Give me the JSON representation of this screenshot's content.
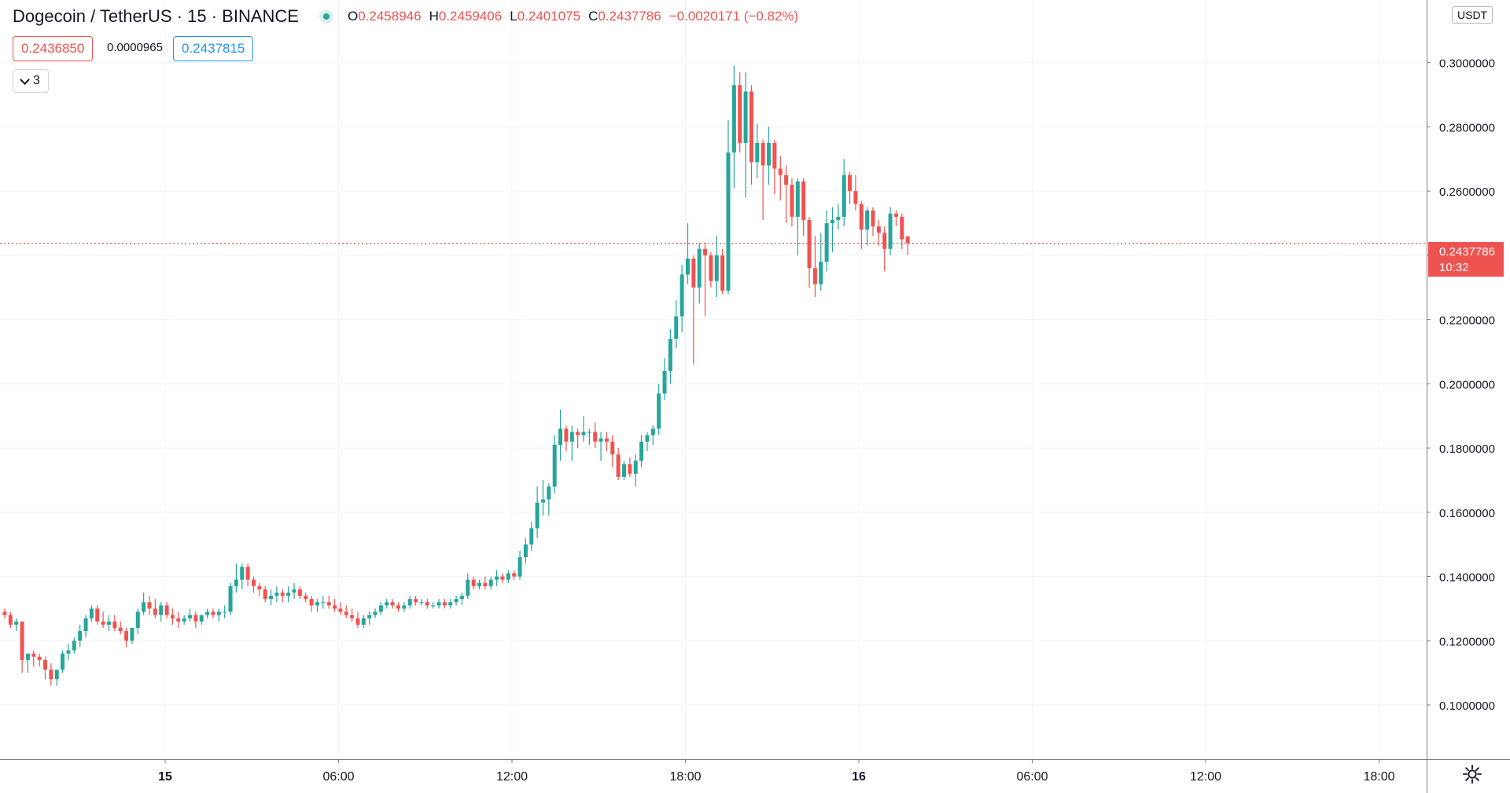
{
  "header": {
    "symbol": "Dogecoin / TetherUS · 15 · BINANCE",
    "o_label": "O",
    "o_value": "0.2458946",
    "h_label": "H",
    "h_value": "0.2459406",
    "l_label": "L",
    "l_value": "0.2401075",
    "c_label": "C",
    "c_value": "0.2437786",
    "change": "−0.0020171 (−0.82%)"
  },
  "sell_price": "0.2436850",
  "spread": "0.0000965",
  "buy_price": "0.2437815",
  "indicators_count": "3",
  "currency": "USDT",
  "last_price": {
    "value": "0.2437786",
    "countdown": "10:32"
  },
  "colors": {
    "up": "#26a69a",
    "down": "#ef5350",
    "grid": "#f0f3fa",
    "axis": "#131722"
  },
  "chart_data": {
    "type": "candlestick",
    "interval_minutes": 15,
    "ylim": [
      0.0885,
      0.3195
    ],
    "y_ticks": [
      "0.1000000",
      "0.1200000",
      "0.1400000",
      "0.1600000",
      "0.1800000",
      "0.2000000",
      "0.2200000",
      "0.2400000",
      "0.2600000",
      "0.2800000",
      "0.3000000"
    ],
    "x_ticks": [
      "15",
      "06:00",
      "12:00",
      "18:00",
      "16",
      "06:00",
      "12:00",
      "18:00"
    ],
    "ohlc": [
      [
        0.129,
        0.13,
        0.127,
        0.128
      ],
      [
        0.128,
        0.129,
        0.124,
        0.125
      ],
      [
        0.125,
        0.127,
        0.123,
        0.126
      ],
      [
        0.126,
        0.126,
        0.11,
        0.114
      ],
      [
        0.114,
        0.116,
        0.11,
        0.116
      ],
      [
        0.116,
        0.117,
        0.112,
        0.115
      ],
      [
        0.115,
        0.116,
        0.112,
        0.114
      ],
      [
        0.114,
        0.115,
        0.108,
        0.111
      ],
      [
        0.111,
        0.113,
        0.106,
        0.108
      ],
      [
        0.108,
        0.111,
        0.106,
        0.111
      ],
      [
        0.111,
        0.117,
        0.11,
        0.116
      ],
      [
        0.116,
        0.119,
        0.114,
        0.117
      ],
      [
        0.117,
        0.121,
        0.116,
        0.12
      ],
      [
        0.12,
        0.125,
        0.118,
        0.123
      ],
      [
        0.123,
        0.128,
        0.121,
        0.127
      ],
      [
        0.127,
        0.131,
        0.126,
        0.13
      ],
      [
        0.13,
        0.131,
        0.125,
        0.126
      ],
      [
        0.126,
        0.129,
        0.124,
        0.125
      ],
      [
        0.125,
        0.128,
        0.123,
        0.126
      ],
      [
        0.126,
        0.128,
        0.123,
        0.124
      ],
      [
        0.124,
        0.126,
        0.122,
        0.123
      ],
      [
        0.123,
        0.124,
        0.118,
        0.12
      ],
      [
        0.12,
        0.124,
        0.119,
        0.124
      ],
      [
        0.124,
        0.13,
        0.122,
        0.129
      ],
      [
        0.129,
        0.135,
        0.128,
        0.132
      ],
      [
        0.132,
        0.134,
        0.128,
        0.13
      ],
      [
        0.13,
        0.133,
        0.127,
        0.128
      ],
      [
        0.128,
        0.132,
        0.126,
        0.131
      ],
      [
        0.131,
        0.132,
        0.127,
        0.128
      ],
      [
        0.128,
        0.13,
        0.125,
        0.127
      ],
      [
        0.127,
        0.129,
        0.124,
        0.126
      ],
      [
        0.126,
        0.128,
        0.125,
        0.127
      ],
      [
        0.127,
        0.13,
        0.126,
        0.128
      ],
      [
        0.128,
        0.129,
        0.124,
        0.126
      ],
      [
        0.126,
        0.128,
        0.125,
        0.128
      ],
      [
        0.128,
        0.13,
        0.127,
        0.129
      ],
      [
        0.129,
        0.13,
        0.127,
        0.128
      ],
      [
        0.128,
        0.13,
        0.126,
        0.129
      ],
      [
        0.129,
        0.131,
        0.127,
        0.129
      ],
      [
        0.129,
        0.138,
        0.128,
        0.137
      ],
      [
        0.137,
        0.144,
        0.135,
        0.139
      ],
      [
        0.139,
        0.144,
        0.136,
        0.143
      ],
      [
        0.143,
        0.144,
        0.137,
        0.139
      ],
      [
        0.139,
        0.14,
        0.135,
        0.137
      ],
      [
        0.137,
        0.138,
        0.134,
        0.136
      ],
      [
        0.136,
        0.137,
        0.132,
        0.133
      ],
      [
        0.133,
        0.136,
        0.131,
        0.134
      ],
      [
        0.134,
        0.137,
        0.132,
        0.135
      ],
      [
        0.135,
        0.136,
        0.132,
        0.134
      ],
      [
        0.134,
        0.137,
        0.132,
        0.135
      ],
      [
        0.135,
        0.138,
        0.133,
        0.136
      ],
      [
        0.136,
        0.137,
        0.133,
        0.134
      ],
      [
        0.134,
        0.135,
        0.132,
        0.133
      ],
      [
        0.133,
        0.134,
        0.129,
        0.131
      ],
      [
        0.131,
        0.133,
        0.129,
        0.132
      ],
      [
        0.132,
        0.134,
        0.13,
        0.132
      ],
      [
        0.132,
        0.134,
        0.13,
        0.131
      ],
      [
        0.131,
        0.133,
        0.129,
        0.13
      ],
      [
        0.13,
        0.132,
        0.128,
        0.129
      ],
      [
        0.129,
        0.131,
        0.127,
        0.128
      ],
      [
        0.128,
        0.13,
        0.126,
        0.127
      ],
      [
        0.127,
        0.129,
        0.124,
        0.125
      ],
      [
        0.125,
        0.128,
        0.124,
        0.127
      ],
      [
        0.127,
        0.129,
        0.125,
        0.128
      ],
      [
        0.128,
        0.13,
        0.127,
        0.129
      ],
      [
        0.129,
        0.132,
        0.128,
        0.131
      ],
      [
        0.131,
        0.133,
        0.13,
        0.132
      ],
      [
        0.132,
        0.133,
        0.13,
        0.131
      ],
      [
        0.131,
        0.132,
        0.129,
        0.13
      ],
      [
        0.13,
        0.132,
        0.129,
        0.131
      ],
      [
        0.131,
        0.134,
        0.13,
        0.133
      ],
      [
        0.133,
        0.134,
        0.131,
        0.132
      ],
      [
        0.132,
        0.133,
        0.131,
        0.132
      ],
      [
        0.132,
        0.133,
        0.13,
        0.131
      ],
      [
        0.131,
        0.132,
        0.13,
        0.131
      ],
      [
        0.131,
        0.133,
        0.13,
        0.132
      ],
      [
        0.132,
        0.133,
        0.13,
        0.131
      ],
      [
        0.131,
        0.133,
        0.13,
        0.132
      ],
      [
        0.132,
        0.134,
        0.131,
        0.133
      ],
      [
        0.133,
        0.135,
        0.131,
        0.134
      ],
      [
        0.134,
        0.141,
        0.133,
        0.139
      ],
      [
        0.139,
        0.14,
        0.136,
        0.137
      ],
      [
        0.137,
        0.139,
        0.136,
        0.138
      ],
      [
        0.138,
        0.14,
        0.136,
        0.137
      ],
      [
        0.137,
        0.14,
        0.136,
        0.139
      ],
      [
        0.139,
        0.142,
        0.137,
        0.14
      ],
      [
        0.14,
        0.141,
        0.138,
        0.139
      ],
      [
        0.139,
        0.142,
        0.138,
        0.141
      ],
      [
        0.141,
        0.142,
        0.139,
        0.14
      ],
      [
        0.14,
        0.148,
        0.139,
        0.146
      ],
      [
        0.146,
        0.152,
        0.144,
        0.15
      ],
      [
        0.15,
        0.157,
        0.148,
        0.155
      ],
      [
        0.155,
        0.168,
        0.152,
        0.163
      ],
      [
        0.163,
        0.17,
        0.159,
        0.164
      ],
      [
        0.164,
        0.169,
        0.159,
        0.168
      ],
      [
        0.168,
        0.184,
        0.166,
        0.181
      ],
      [
        0.181,
        0.192,
        0.176,
        0.186
      ],
      [
        0.186,
        0.187,
        0.179,
        0.182
      ],
      [
        0.182,
        0.187,
        0.176,
        0.185
      ],
      [
        0.185,
        0.186,
        0.18,
        0.184
      ],
      [
        0.184,
        0.19,
        0.182,
        0.185
      ],
      [
        0.185,
        0.186,
        0.181,
        0.185
      ],
      [
        0.185,
        0.188,
        0.18,
        0.182
      ],
      [
        0.182,
        0.185,
        0.176,
        0.183
      ],
      [
        0.183,
        0.185,
        0.179,
        0.182
      ],
      [
        0.182,
        0.184,
        0.174,
        0.178
      ],
      [
        0.178,
        0.18,
        0.17,
        0.171
      ],
      [
        0.171,
        0.176,
        0.17,
        0.175
      ],
      [
        0.175,
        0.177,
        0.171,
        0.172
      ],
      [
        0.172,
        0.178,
        0.168,
        0.176
      ],
      [
        0.176,
        0.184,
        0.174,
        0.182
      ],
      [
        0.182,
        0.185,
        0.179,
        0.184
      ],
      [
        0.184,
        0.187,
        0.181,
        0.186
      ],
      [
        0.186,
        0.2,
        0.184,
        0.197
      ],
      [
        0.197,
        0.208,
        0.195,
        0.204
      ],
      [
        0.204,
        0.217,
        0.2,
        0.214
      ],
      [
        0.214,
        0.226,
        0.211,
        0.221
      ],
      [
        0.221,
        0.237,
        0.216,
        0.234
      ],
      [
        0.234,
        0.25,
        0.231,
        0.239
      ],
      [
        0.239,
        0.24,
        0.206,
        0.23
      ],
      [
        0.23,
        0.244,
        0.225,
        0.242
      ],
      [
        0.242,
        0.244,
        0.221,
        0.24
      ],
      [
        0.24,
        0.241,
        0.23,
        0.232
      ],
      [
        0.232,
        0.246,
        0.227,
        0.24
      ],
      [
        0.24,
        0.242,
        0.228,
        0.229
      ],
      [
        0.229,
        0.282,
        0.228,
        0.272
      ],
      [
        0.272,
        0.299,
        0.261,
        0.293
      ],
      [
        0.293,
        0.297,
        0.272,
        0.275
      ],
      [
        0.275,
        0.297,
        0.258,
        0.291
      ],
      [
        0.291,
        0.293,
        0.262,
        0.269
      ],
      [
        0.269,
        0.281,
        0.264,
        0.275
      ],
      [
        0.275,
        0.276,
        0.251,
        0.268
      ],
      [
        0.268,
        0.28,
        0.262,
        0.275
      ],
      [
        0.275,
        0.276,
        0.259,
        0.267
      ],
      [
        0.267,
        0.271,
        0.257,
        0.265
      ],
      [
        0.265,
        0.268,
        0.25,
        0.262
      ],
      [
        0.262,
        0.264,
        0.249,
        0.252
      ],
      [
        0.252,
        0.264,
        0.24,
        0.263
      ],
      [
        0.263,
        0.264,
        0.246,
        0.251
      ],
      [
        0.251,
        0.252,
        0.23,
        0.236
      ],
      [
        0.236,
        0.246,
        0.227,
        0.231
      ],
      [
        0.231,
        0.247,
        0.229,
        0.238
      ],
      [
        0.238,
        0.254,
        0.235,
        0.25
      ],
      [
        0.25,
        0.255,
        0.241,
        0.251
      ],
      [
        0.251,
        0.256,
        0.248,
        0.252
      ],
      [
        0.252,
        0.27,
        0.249,
        0.265
      ],
      [
        0.265,
        0.266,
        0.256,
        0.26
      ],
      [
        0.26,
        0.265,
        0.254,
        0.256
      ],
      [
        0.256,
        0.257,
        0.242,
        0.248
      ],
      [
        0.248,
        0.255,
        0.243,
        0.254
      ],
      [
        0.254,
        0.255,
        0.246,
        0.249
      ],
      [
        0.249,
        0.251,
        0.243,
        0.247
      ],
      [
        0.247,
        0.249,
        0.235,
        0.242
      ],
      [
        0.242,
        0.255,
        0.24,
        0.253
      ],
      [
        0.253,
        0.254,
        0.249,
        0.252
      ],
      [
        0.252,
        0.253,
        0.242,
        0.245
      ],
      [
        0.2458946,
        0.2459406,
        0.2401075,
        0.2437786
      ]
    ]
  }
}
